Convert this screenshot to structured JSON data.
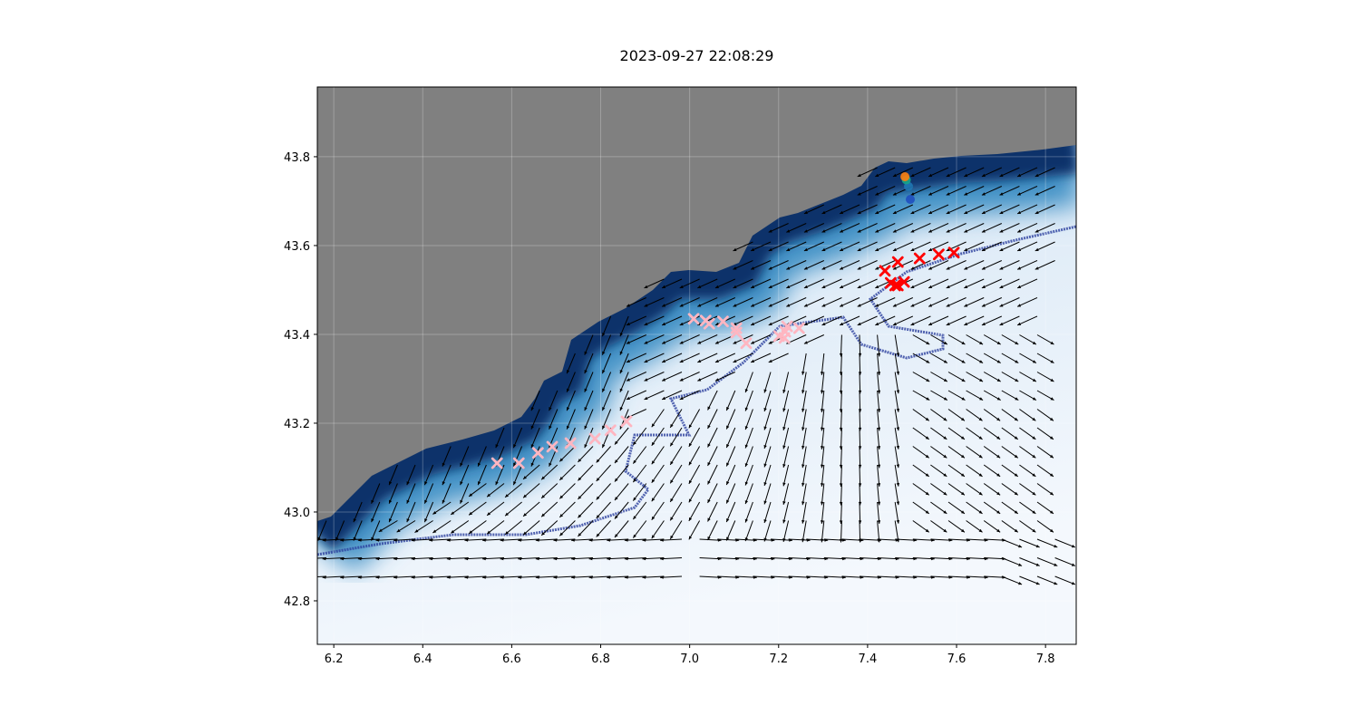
{
  "title": "2023-09-27 22:08:29",
  "chart_data": {
    "type": "map-quiver-scatter",
    "xlim": [
      6.163,
      7.869
    ],
    "ylim": [
      42.702,
      43.957
    ],
    "xticks": [
      "6.2",
      "6.4",
      "6.6",
      "6.8",
      "7.0",
      "7.2",
      "7.4",
      "7.6",
      "7.8"
    ],
    "yticks": [
      "42.8",
      "43.0",
      "43.2",
      "43.4",
      "43.6",
      "43.8"
    ],
    "grid": true,
    "colors": {
      "land": "#808080",
      "sea_deep": "#f4f8fd",
      "sea_shallow": "#08306b",
      "pink_markers": "#ffb6c1",
      "red_markers": "#ff0000",
      "arrows": "#000000"
    },
    "pink_markers": [
      [
        6.567,
        43.11
      ],
      [
        6.616,
        43.11
      ],
      [
        6.659,
        43.133
      ],
      [
        6.691,
        43.147
      ],
      [
        6.732,
        43.155
      ],
      [
        6.787,
        43.165
      ],
      [
        6.822,
        43.184
      ],
      [
        6.858,
        43.204
      ],
      [
        7.009,
        43.435
      ],
      [
        7.036,
        43.431
      ],
      [
        7.044,
        43.424
      ],
      [
        7.075,
        43.429
      ],
      [
        7.105,
        43.414
      ],
      [
        7.105,
        43.404
      ],
      [
        7.127,
        43.38
      ],
      [
        7.201,
        43.396
      ],
      [
        7.213,
        43.392
      ],
      [
        7.215,
        43.406
      ],
      [
        7.219,
        43.418
      ],
      [
        7.246,
        43.414
      ]
    ],
    "red_markers": [
      [
        7.439,
        43.543
      ],
      [
        7.468,
        43.563
      ],
      [
        7.517,
        43.571
      ],
      [
        7.56,
        43.58
      ],
      [
        7.594,
        43.584
      ],
      [
        7.452,
        43.516
      ],
      [
        7.462,
        43.51
      ],
      [
        7.468,
        43.51
      ],
      [
        7.482,
        43.518
      ]
    ],
    "track_points": [
      {
        "lon": 7.496,
        "lat": 43.704,
        "color": "#1f4fbf"
      },
      {
        "lon": 7.492,
        "lat": 43.733,
        "color": "#1f77b4"
      },
      {
        "lon": 7.487,
        "lat": 43.748,
        "color": "#17a589"
      },
      {
        "lon": 7.484,
        "lat": 43.755,
        "color": "#ff7f0e"
      }
    ]
  }
}
